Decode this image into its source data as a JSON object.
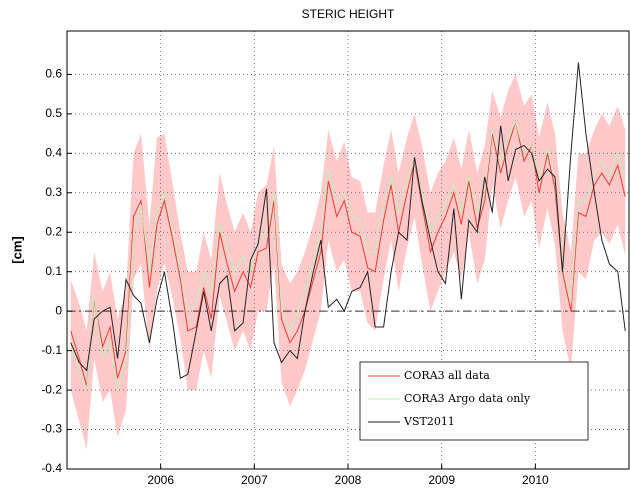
{
  "chart_data": {
    "type": "line",
    "title": "STERIC HEIGHT",
    "ylabel": "[cm]",
    "x": [
      2005.04,
      2005.13,
      2005.21,
      2005.29,
      2005.38,
      2005.46,
      2005.54,
      2005.63,
      2005.71,
      2005.79,
      2005.88,
      2005.96,
      2006.04,
      2006.13,
      2006.21,
      2006.29,
      2006.38,
      2006.46,
      2006.54,
      2006.63,
      2006.71,
      2006.79,
      2006.88,
      2006.96,
      2007.04,
      2007.13,
      2007.21,
      2007.29,
      2007.38,
      2007.46,
      2007.54,
      2007.63,
      2007.71,
      2007.79,
      2007.88,
      2007.96,
      2008.04,
      2008.13,
      2008.21,
      2008.29,
      2008.38,
      2008.46,
      2008.54,
      2008.63,
      2008.71,
      2008.79,
      2008.88,
      2008.96,
      2009.04,
      2009.13,
      2009.21,
      2009.29,
      2009.38,
      2009.46,
      2009.54,
      2009.63,
      2009.71,
      2009.79,
      2009.88,
      2009.96,
      2010.04,
      2010.13,
      2010.21,
      2010.29,
      2010.38,
      2010.46,
      2010.54,
      2010.63,
      2010.71,
      2010.79,
      2010.88,
      2010.96
    ],
    "band": {
      "color": "#ffc9c9",
      "upper": [
        0.08,
        0.02,
        -0.05,
        0.15,
        0.05,
        0.1,
        -0.02,
        0.05,
        0.4,
        0.45,
        0.22,
        0.44,
        0.45,
        0.32,
        0.2,
        0.1,
        0.1,
        0.2,
        0.13,
        0.35,
        0.27,
        0.2,
        0.25,
        0.2,
        0.3,
        0.32,
        0.42,
        0.12,
        0.07,
        0.1,
        0.15,
        0.22,
        0.3,
        0.46,
        0.38,
        0.43,
        0.34,
        0.33,
        0.25,
        0.25,
        0.37,
        0.46,
        0.35,
        0.44,
        0.5,
        0.42,
        0.3,
        0.35,
        0.38,
        0.44,
        0.36,
        0.46,
        0.35,
        0.42,
        0.56,
        0.49,
        0.56,
        0.6,
        0.52,
        0.55,
        0.44,
        0.53,
        0.45,
        0.25,
        0.15,
        0.4,
        0.4,
        0.46,
        0.5,
        0.47,
        0.52,
        0.46
      ],
      "lower": [
        -0.2,
        -0.28,
        -0.35,
        -0.12,
        -0.23,
        -0.2,
        -0.32,
        -0.25,
        0.08,
        0.12,
        -0.1,
        0.05,
        0.12,
        0.03,
        -0.07,
        -0.2,
        -0.2,
        -0.1,
        -0.17,
        0.04,
        -0.03,
        -0.1,
        -0.05,
        -0.1,
        0.0,
        0.0,
        0.12,
        -0.18,
        -0.24,
        -0.2,
        -0.15,
        -0.07,
        0.0,
        0.18,
        0.1,
        0.13,
        0.05,
        0.05,
        -0.03,
        -0.05,
        0.08,
        0.18,
        0.05,
        0.16,
        0.24,
        0.12,
        0.0,
        0.05,
        0.1,
        0.15,
        0.08,
        0.2,
        0.07,
        0.13,
        0.32,
        0.21,
        0.28,
        0.34,
        0.24,
        0.28,
        0.16,
        0.26,
        0.17,
        -0.05,
        -0.15,
        0.1,
        0.08,
        0.18,
        0.2,
        0.17,
        0.22,
        0.14
      ]
    },
    "series": [
      {
        "name": "CORA3 all data",
        "color": "#f03c32",
        "values": [
          -0.05,
          -0.12,
          -0.19,
          0.03,
          -0.09,
          -0.04,
          -0.17,
          -0.1,
          0.24,
          0.28,
          0.06,
          0.22,
          0.28,
          0.18,
          0.08,
          -0.05,
          -0.04,
          0.06,
          -0.02,
          0.2,
          0.12,
          0.05,
          0.1,
          0.06,
          0.15,
          0.16,
          0.28,
          -0.02,
          -0.08,
          -0.05,
          0.0,
          0.08,
          0.15,
          0.33,
          0.24,
          0.28,
          0.2,
          0.19,
          0.11,
          0.1,
          0.23,
          0.32,
          0.2,
          0.3,
          0.38,
          0.27,
          0.15,
          0.2,
          0.24,
          0.3,
          0.22,
          0.33,
          0.21,
          0.28,
          0.45,
          0.35,
          0.42,
          0.48,
          0.38,
          0.42,
          0.3,
          0.4,
          0.31,
          0.1,
          0.0,
          0.25,
          0.24,
          0.32,
          0.35,
          0.32,
          0.37,
          0.29
        ]
      },
      {
        "name": "CORA3 Argo data only",
        "color": "#bfeebb",
        "values": [
          -0.08,
          -0.15,
          -0.2,
          0.04,
          -0.12,
          -0.08,
          -0.2,
          -0.12,
          0.2,
          0.27,
          0.1,
          0.25,
          0.3,
          0.2,
          0.1,
          0.0,
          0.02,
          0.1,
          0.05,
          0.22,
          0.16,
          0.1,
          0.14,
          0.1,
          0.18,
          0.2,
          0.3,
          0.0,
          -0.05,
          0.0,
          0.05,
          0.12,
          0.2,
          0.36,
          0.28,
          0.3,
          0.24,
          0.23,
          0.15,
          0.15,
          0.27,
          0.34,
          0.25,
          0.33,
          0.38,
          0.3,
          0.2,
          0.24,
          0.27,
          0.32,
          0.25,
          0.34,
          0.25,
          0.3,
          0.46,
          0.37,
          0.44,
          0.48,
          0.4,
          0.42,
          0.33,
          0.41,
          0.33,
          0.12,
          0.02,
          0.28,
          0.28,
          0.35,
          0.38,
          0.34,
          0.4,
          0.33
        ]
      },
      {
        "name": "VST2011",
        "color": "#222222",
        "values": [
          -0.08,
          -0.13,
          -0.15,
          -0.02,
          0.0,
          0.01,
          -0.12,
          0.08,
          0.04,
          0.02,
          -0.08,
          0.03,
          0.1,
          -0.03,
          -0.17,
          -0.16,
          -0.05,
          0.05,
          -0.05,
          0.07,
          0.09,
          -0.05,
          -0.03,
          0.13,
          0.17,
          0.31,
          -0.08,
          -0.13,
          -0.1,
          -0.12,
          0.0,
          0.1,
          0.18,
          0.01,
          0.03,
          0.0,
          0.05,
          0.06,
          0.1,
          -0.04,
          -0.04,
          0.1,
          0.2,
          0.18,
          0.39,
          0.28,
          0.18,
          0.1,
          0.07,
          0.26,
          0.03,
          0.23,
          0.2,
          0.34,
          0.25,
          0.47,
          0.33,
          0.41,
          0.42,
          0.4,
          0.33,
          0.36,
          0.34,
          0.1,
          0.4,
          0.63,
          0.45,
          0.3,
          0.18,
          0.12,
          0.1,
          -0.05
        ]
      }
    ],
    "xlim": [
      2005,
      2011
    ],
    "xticks": [
      2006,
      2007,
      2008,
      2009,
      2010
    ],
    "ylim": [
      -0.4,
      0.71
    ],
    "yticks": [
      -0.4,
      -0.3,
      -0.2,
      -0.1,
      0,
      0.1,
      0.2,
      0.3,
      0.4,
      0.5,
      0.6
    ],
    "hline": 0,
    "grid": true,
    "legend": "lower right"
  }
}
